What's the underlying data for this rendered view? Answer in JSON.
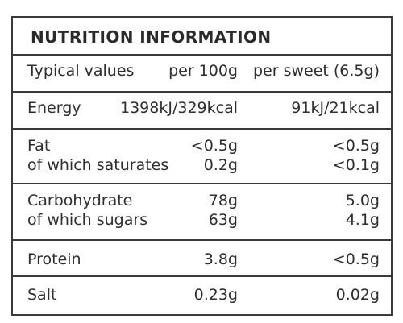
{
  "panel": {
    "title": "NUTRITION INFORMATION",
    "header": {
      "label": "Typical values",
      "col_100g": "per 100g",
      "col_sweet": "per sweet (6.5g)"
    },
    "rows": [
      {
        "name": "Energy",
        "per100": "1398kJ/329kcal",
        "perSweet": "91kJ/21kcal"
      },
      {
        "name": "Fat",
        "per100": "<0.5g",
        "perSweet": "<0.5g"
      },
      {
        "name": "of which saturates",
        "per100": "0.2g",
        "perSweet": "<0.1g"
      },
      {
        "name": "Carbohydrate",
        "per100": "78g",
        "perSweet": "5.0g"
      },
      {
        "name": "of which sugars",
        "per100": "63g",
        "perSweet": "4.1g"
      },
      {
        "name": "Protein",
        "per100": "3.8g",
        "perSweet": "<0.5g"
      },
      {
        "name": "Salt",
        "per100": "0.23g",
        "perSweet": "0.02g"
      }
    ]
  }
}
